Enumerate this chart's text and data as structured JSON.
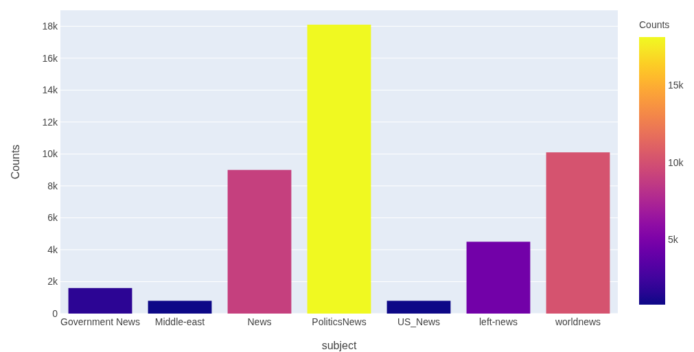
{
  "chart_data": {
    "type": "bar",
    "xlabel": "subject",
    "ylabel": "Counts",
    "clabel": "Counts",
    "categories": [
      "Government News",
      "Middle-east",
      "News",
      "PoliticsNews",
      "US_News",
      "left-news",
      "worldnews"
    ],
    "values": [
      1600,
      800,
      9000,
      18100,
      800,
      4500,
      10100
    ],
    "colors": [
      "#2c0594",
      "#0d0887",
      "#c5407e",
      "#f0f921",
      "#0d0887",
      "#7201a8",
      "#d5536f"
    ],
    "ylim": [
      0,
      19000
    ],
    "yticks": [
      {
        "value": 0,
        "label": "0"
      },
      {
        "value": 2000,
        "label": "2k"
      },
      {
        "value": 4000,
        "label": "4k"
      },
      {
        "value": 6000,
        "label": "6k"
      },
      {
        "value": 8000,
        "label": "8k"
      },
      {
        "value": 10000,
        "label": "10k"
      },
      {
        "value": 12000,
        "label": "12k"
      },
      {
        "value": 14000,
        "label": "14k"
      },
      {
        "value": 16000,
        "label": "16k"
      },
      {
        "value": 18000,
        "label": "18k"
      }
    ],
    "clim": [
      800,
      18100
    ],
    "cticks": [
      {
        "value": 5000,
        "label": "5k"
      },
      {
        "value": 10000,
        "label": "10k"
      },
      {
        "value": 15000,
        "label": "15k"
      }
    ],
    "grid": "y"
  }
}
